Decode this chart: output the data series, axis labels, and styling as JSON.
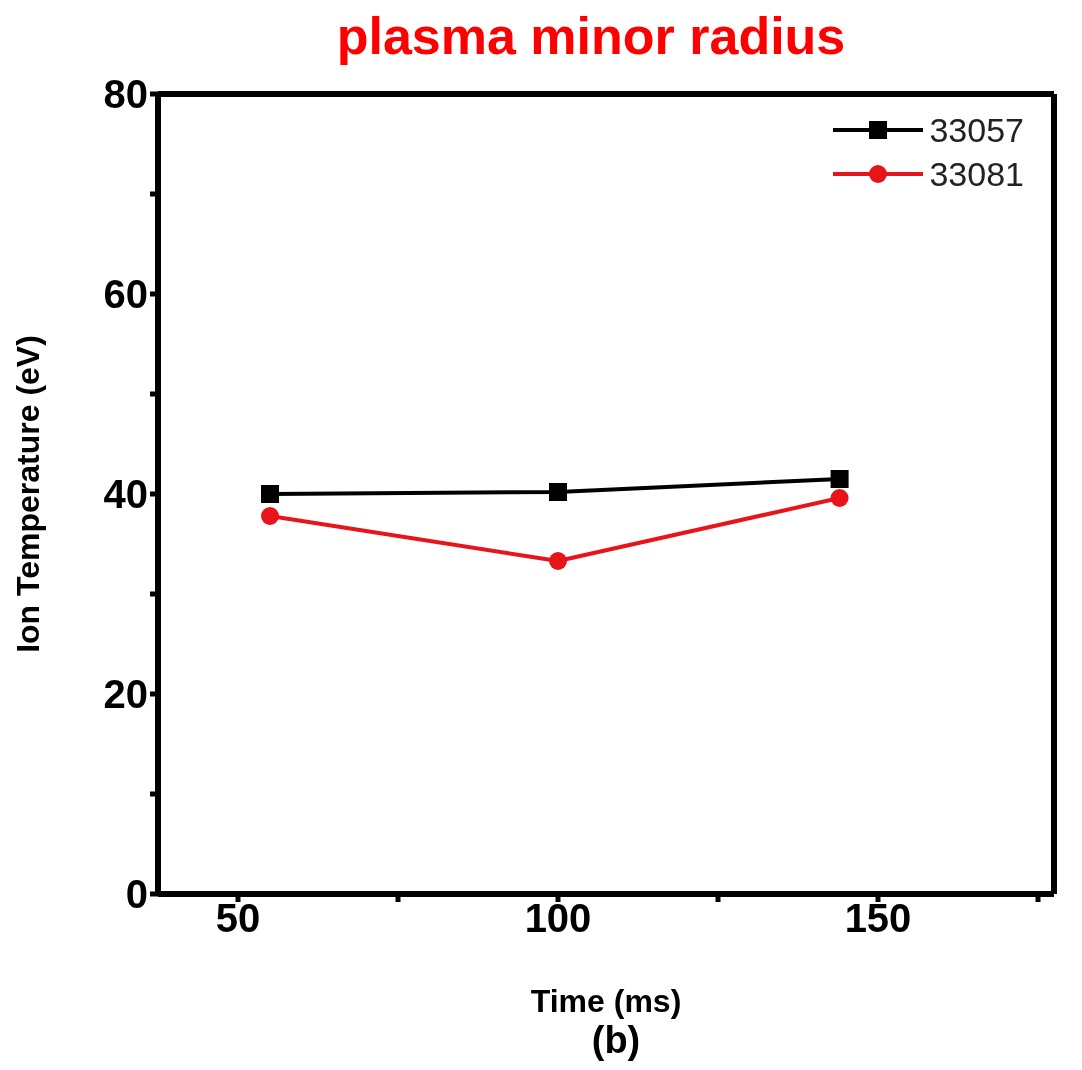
{
  "chart_data": {
    "type": "line",
    "title": "plasma minor radius",
    "xlabel": "Time (ms)",
    "ylabel": "Ion Temperature (eV)",
    "annotations": [
      "(b)"
    ],
    "x": [
      55,
      100,
      144
    ],
    "series": [
      {
        "name": "33057",
        "color": "#000000",
        "marker": "square",
        "values": [
          40,
          40.2,
          41.5
        ]
      },
      {
        "name": "33081",
        "color": "#e8141c",
        "marker": "circle",
        "values": [
          37.8,
          33.3,
          39.6
        ]
      }
    ],
    "xlim": [
      37.5,
      177.5
    ],
    "xticks": [
      50,
      {
        "value": 75,
        "label": null
      },
      100,
      {
        "value": 125,
        "label": null
      },
      150,
      {
        "value": 175,
        "label": null
      }
    ],
    "ylim": [
      0,
      80
    ],
    "yticks": [
      0,
      {
        "value": 10,
        "label": null
      },
      20,
      {
        "value": 30,
        "label": null
      },
      40,
      {
        "value": 50,
        "label": null
      },
      60,
      {
        "value": 70,
        "label": null
      },
      80
    ],
    "grid": false,
    "legend": "top right"
  }
}
